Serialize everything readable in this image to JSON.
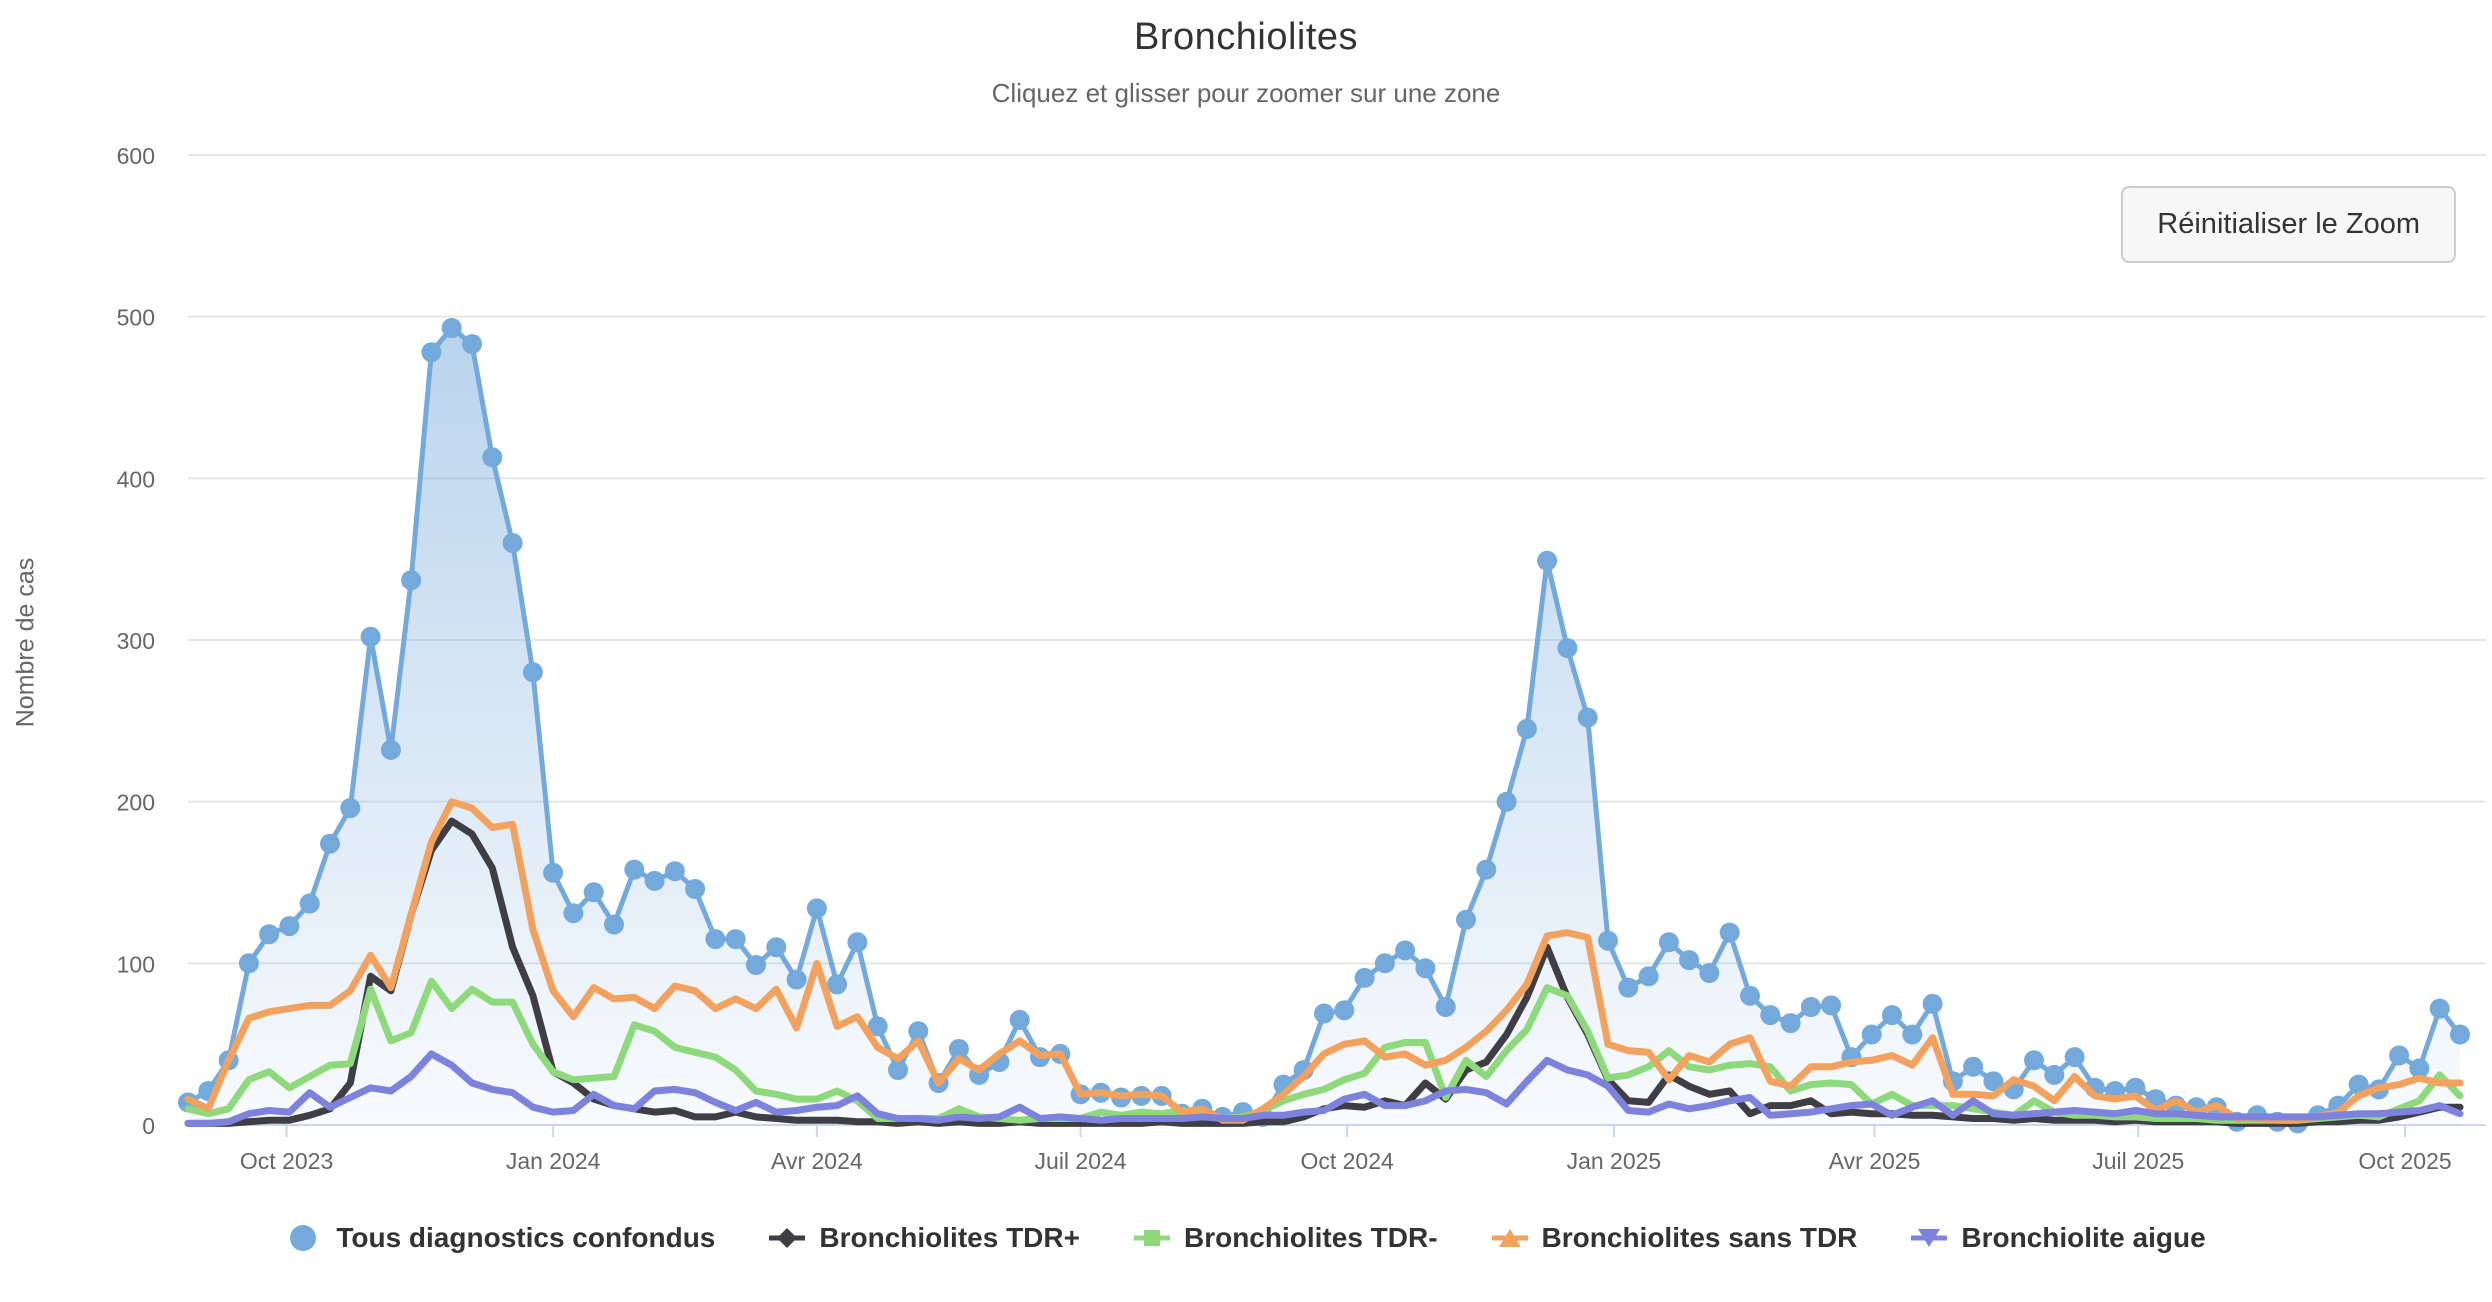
{
  "header": {
    "title": "Bronchiolites",
    "subtitle": "Cliquez et glisser pour zoomer sur une zone"
  },
  "toolbar": {
    "reset_zoom_label": "Réinitialiser le Zoom"
  },
  "colors": {
    "grid": "#e6e6e6",
    "axis": "#ccd6eb",
    "text_primary": "#333333",
    "text_secondary": "#666666",
    "background": "#ffffff"
  },
  "chart_data": {
    "type": "area",
    "title": "Bronchiolites",
    "subtitle": "Cliquez et glisser pour zoomer sur une zone",
    "xlabel": "",
    "ylabel": "Nombre de cas",
    "ylim": [
      0,
      600
    ],
    "y_ticks": [
      0,
      100,
      200,
      300,
      400,
      500,
      600
    ],
    "grid": true,
    "legend_position": "bottom",
    "x_unit": "week",
    "n_points": 113,
    "x_ticks": [
      {
        "label": "Oct 2023",
        "week": 4.86
      },
      {
        "label": "Jan 2024",
        "week": 18.0
      },
      {
        "label": "Avr 2024",
        "week": 31.0
      },
      {
        "label": "Juil 2024",
        "week": 44.0
      },
      {
        "label": "Oct 2024",
        "week": 57.14
      },
      {
        "label": "Jan 2025",
        "week": 70.29
      },
      {
        "label": "Avr 2025",
        "week": 83.14
      },
      {
        "label": "Juil 2025",
        "week": 96.14
      },
      {
        "label": "Oct 2025",
        "week": 109.29
      }
    ],
    "series": [
      {
        "name": "Tous diagnostics confondus",
        "color": "#74a9dc",
        "marker": "circle",
        "draw": "area",
        "show_point_markers": true,
        "values": [
          14,
          21,
          40,
          100,
          118,
          123,
          137,
          174,
          196,
          302,
          232,
          337,
          478,
          493,
          483,
          413,
          360,
          280,
          156,
          131,
          144,
          124,
          158,
          151,
          157,
          146,
          115,
          115,
          99,
          110,
          90,
          134,
          87,
          113,
          61,
          34,
          58,
          26,
          47,
          31,
          39,
          65,
          42,
          44,
          19,
          20,
          17,
          18,
          18,
          7,
          10,
          5,
          8,
          5,
          25,
          34,
          69,
          71,
          91,
          100,
          108,
          97,
          73,
          127,
          158,
          200,
          245,
          349,
          295,
          252,
          114,
          85,
          92,
          113,
          102,
          94,
          119,
          80,
          68,
          63,
          73,
          74,
          42,
          56,
          68,
          56,
          75,
          27,
          36,
          27,
          22,
          40,
          31,
          42,
          23,
          21,
          23,
          16,
          12,
          11,
          11,
          2,
          6,
          2,
          1,
          6,
          12,
          25,
          22,
          43,
          35,
          72,
          56
        ]
      },
      {
        "name": "Bronchiolites TDR+",
        "color": "#3e3e44",
        "marker": "diamond",
        "draw": "line",
        "show_point_markers": false,
        "values": [
          1,
          1,
          1,
          2,
          3,
          3,
          6,
          10,
          26,
          92,
          83,
          130,
          170,
          188,
          180,
          159,
          110,
          80,
          33,
          26,
          16,
          12,
          10,
          8,
          9,
          5,
          5,
          8,
          5,
          4,
          3,
          3,
          3,
          2,
          2,
          1,
          2,
          1,
          2,
          1,
          1,
          2,
          1,
          1,
          1,
          1,
          1,
          1,
          2,
          1,
          1,
          1,
          1,
          2,
          2,
          5,
          10,
          12,
          11,
          15,
          12,
          26,
          16,
          34,
          39,
          56,
          79,
          110,
          79,
          56,
          28,
          15,
          14,
          31,
          24,
          19,
          21,
          7,
          12,
          12,
          15,
          7,
          8,
          7,
          7,
          6,
          6,
          5,
          4,
          4,
          3,
          4,
          3,
          3,
          3,
          2,
          3,
          2,
          2,
          2,
          2,
          1,
          1,
          1,
          1,
          2,
          2,
          3,
          3,
          5,
          8,
          11,
          11
        ]
      },
      {
        "name": "Bronchiolites TDR-",
        "color": "#8ed97c",
        "marker": "square",
        "draw": "line",
        "show_point_markers": false,
        "values": [
          10,
          7,
          10,
          28,
          33,
          23,
          30,
          37,
          38,
          84,
          52,
          57,
          89,
          72,
          84,
          76,
          76,
          50,
          33,
          28,
          29,
          30,
          62,
          58,
          48,
          45,
          42,
          34,
          21,
          19,
          16,
          16,
          21,
          15,
          4,
          4,
          4,
          4,
          10,
          5,
          4,
          3,
          4,
          4,
          4,
          8,
          6,
          8,
          7,
          9,
          7,
          4,
          5,
          9,
          15,
          19,
          22,
          28,
          32,
          48,
          51,
          51,
          17,
          40,
          30,
          46,
          59,
          85,
          80,
          58,
          29,
          31,
          36,
          46,
          36,
          34,
          37,
          38,
          36,
          21,
          25,
          26,
          25,
          13,
          19,
          12,
          12,
          12,
          10,
          8,
          6,
          15,
          8,
          6,
          6,
          5,
          5,
          4,
          4,
          4,
          3,
          3,
          3,
          3,
          3,
          4,
          5,
          6,
          5,
          10,
          15,
          31,
          18
        ]
      },
      {
        "name": "Bronchiolites sans TDR",
        "color": "#f2a15f",
        "marker": "triangle",
        "draw": "line",
        "show_point_markers": false,
        "values": [
          16,
          10,
          40,
          66,
          70,
          72,
          74,
          74,
          83,
          105,
          85,
          130,
          175,
          200,
          196,
          184,
          186,
          121,
          83,
          67,
          85,
          78,
          79,
          72,
          86,
          83,
          72,
          78,
          72,
          84,
          60,
          100,
          61,
          67,
          48,
          41,
          52,
          26,
          41,
          34,
          44,
          52,
          43,
          44,
          19,
          20,
          18,
          19,
          18,
          8,
          10,
          3,
          3,
          10,
          19,
          30,
          44,
          50,
          52,
          42,
          44,
          37,
          40,
          48,
          58,
          71,
          87,
          117,
          119,
          116,
          50,
          46,
          45,
          28,
          43,
          39,
          50,
          54,
          27,
          24,
          36,
          36,
          39,
          40,
          43,
          37,
          54,
          19,
          19,
          18,
          28,
          24,
          15,
          30,
          18,
          16,
          18,
          9,
          15,
          8,
          12,
          4,
          4,
          3,
          3,
          5,
          8,
          18,
          23,
          25,
          29,
          26,
          26
        ]
      },
      {
        "name": "Bronchiolite aigue",
        "color": "#7d83dd",
        "marker": "triangle-down",
        "draw": "line",
        "show_point_markers": false,
        "values": [
          1,
          1,
          2,
          7,
          9,
          8,
          20,
          11,
          17,
          23,
          21,
          30,
          44,
          37,
          26,
          22,
          20,
          11,
          8,
          9,
          19,
          12,
          10,
          21,
          22,
          20,
          14,
          9,
          14,
          8,
          9,
          11,
          12,
          18,
          7,
          4,
          4,
          3,
          5,
          4,
          5,
          11,
          4,
          5,
          4,
          3,
          4,
          4,
          4,
          4,
          5,
          4,
          4,
          6,
          6,
          8,
          9,
          16,
          19,
          12,
          12,
          15,
          21,
          22,
          20,
          13,
          27,
          40,
          34,
          31,
          24,
          9,
          8,
          13,
          10,
          12,
          15,
          17,
          6,
          7,
          8,
          10,
          12,
          13,
          6,
          11,
          15,
          6,
          15,
          7,
          6,
          7,
          8,
          9,
          8,
          7,
          9,
          7,
          7,
          6,
          5,
          5,
          5,
          5,
          5,
          5,
          6,
          7,
          7,
          8,
          9,
          12,
          7
        ]
      }
    ]
  }
}
